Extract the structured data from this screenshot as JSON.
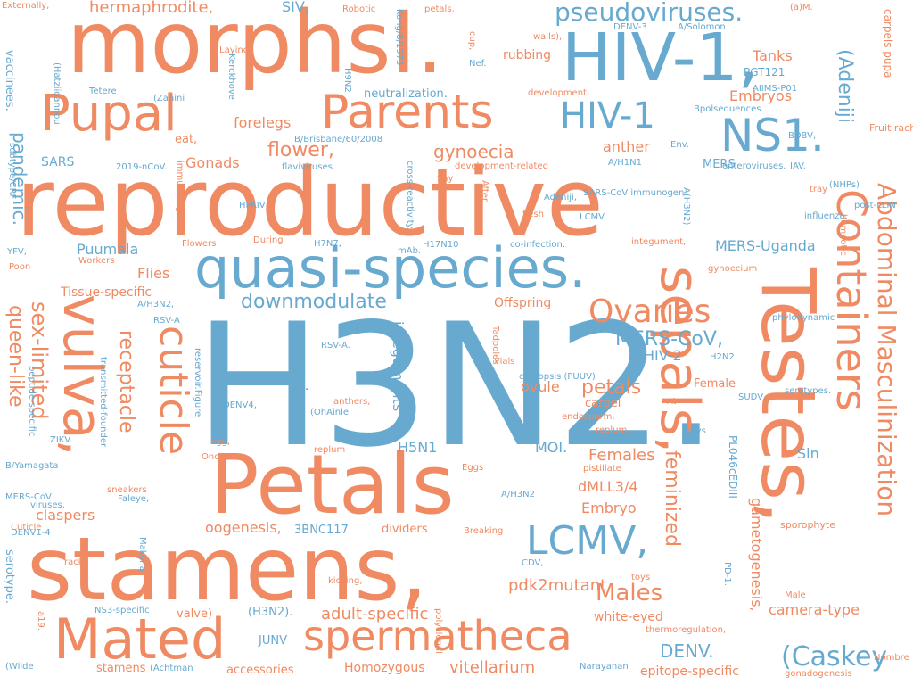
{
  "palette": {
    "orange": "#ef8a62",
    "blue": "#67a9cf",
    "background": "#ffffff"
  },
  "words": [
    {
      "text": "H3N2.",
      "color": "blue",
      "vertical": false
    },
    {
      "text": "reproductive",
      "color": "orange",
      "vertical": false
    },
    {
      "text": "stamens,",
      "color": "orange",
      "vertical": false
    },
    {
      "text": "morphsI.",
      "color": "orange",
      "vertical": false
    },
    {
      "text": "Testes,",
      "color": "orange",
      "vertical": true
    },
    {
      "text": "Petals",
      "color": "orange",
      "vertical": false
    },
    {
      "text": "HIV-1,",
      "color": "blue",
      "vertical": false
    },
    {
      "text": "quasi-species.",
      "color": "blue",
      "vertical": false
    },
    {
      "text": "sepals,",
      "color": "orange",
      "vertical": true
    },
    {
      "text": "vulva,",
      "color": "orange",
      "vertical": true
    },
    {
      "text": "Mated",
      "color": "orange",
      "vertical": false
    },
    {
      "text": "Pupal",
      "color": "orange",
      "vertical": false
    },
    {
      "text": "Parents",
      "color": "orange",
      "vertical": false
    },
    {
      "text": "spermatheca",
      "color": "orange",
      "vertical": false
    },
    {
      "text": "NS1.",
      "color": "blue",
      "vertical": false
    },
    {
      "text": "Containers",
      "color": "orange",
      "vertical": true
    },
    {
      "text": "cuticle",
      "color": "orange",
      "vertical": true
    },
    {
      "text": "LCMV,",
      "color": "blue",
      "vertical": false
    },
    {
      "text": "HIV-1",
      "color": "blue",
      "vertical": false
    },
    {
      "text": "Abdominal Masculinization",
      "color": "orange",
      "vertical": true
    },
    {
      "text": "Ovaries",
      "color": "orange",
      "vertical": false
    },
    {
      "text": "(Caskey",
      "color": "blue",
      "vertical": false
    },
    {
      "text": "(Adeniji",
      "color": "blue",
      "vertical": true
    },
    {
      "text": "sex-limited",
      "color": "orange",
      "vertical": true
    },
    {
      "text": "pseudoviruses.",
      "color": "blue",
      "vertical": false
    },
    {
      "text": "receptacle",
      "color": "orange",
      "vertical": true
    },
    {
      "text": "queen-like",
      "color": "orange",
      "vertical": true
    },
    {
      "text": "Males",
      "color": "orange",
      "vertical": false
    },
    {
      "text": "downmodulate",
      "color": "blue",
      "vertical": false
    },
    {
      "text": "feminized",
      "color": "orange",
      "vertical": true
    },
    {
      "text": "MERS-CoV,",
      "color": "blue",
      "vertical": false
    },
    {
      "text": "petals",
      "color": "orange",
      "vertical": false
    },
    {
      "text": "flower,",
      "color": "orange",
      "vertical": false
    },
    {
      "text": "gynoecia",
      "color": "orange",
      "vertical": false
    },
    {
      "text": "pandemic.",
      "color": "blue",
      "vertical": true
    },
    {
      "text": "DENV.",
      "color": "blue",
      "vertical": false
    },
    {
      "text": "adult-specific",
      "color": "orange",
      "vertical": false
    },
    {
      "text": "vitellarium",
      "color": "orange",
      "vertical": false
    },
    {
      "text": "hermaphrodite,",
      "color": "orange",
      "vertical": false
    },
    {
      "text": "pdk2mutant",
      "color": "orange",
      "vertical": false
    },
    {
      "text": "gametogenesis,",
      "color": "orange",
      "vertical": true
    },
    {
      "text": "coronavirus.",
      "color": "blue",
      "vertical": true
    },
    {
      "text": "integuments",
      "color": "blue",
      "vertical": true
    },
    {
      "text": "MERS-Uganda",
      "color": "blue",
      "vertical": false
    },
    {
      "text": "Embryo",
      "color": "orange",
      "vertical": false
    },
    {
      "text": "dMLL3/4",
      "color": "orange",
      "vertical": false
    },
    {
      "text": "Females",
      "color": "orange",
      "vertical": false
    },
    {
      "text": "oogenesis,",
      "color": "orange",
      "vertical": false
    },
    {
      "text": "claspers",
      "color": "orange",
      "vertical": false
    },
    {
      "text": "ovule",
      "color": "orange",
      "vertical": false
    },
    {
      "text": "HIV-2",
      "color": "blue",
      "vertical": false
    },
    {
      "text": "H5N1",
      "color": "blue",
      "vertical": false
    },
    {
      "text": "MOI.",
      "color": "blue",
      "vertical": false
    },
    {
      "text": "epitope-specific",
      "color": "orange",
      "vertical": false
    },
    {
      "text": "camera-type",
      "color": "orange",
      "vertical": false
    },
    {
      "text": "Embryos",
      "color": "orange",
      "vertical": false
    },
    {
      "text": "Tanks",
      "color": "orange",
      "vertical": false
    },
    {
      "text": "anther",
      "color": "orange",
      "vertical": false
    },
    {
      "text": "forelegs",
      "color": "orange",
      "vertical": false
    },
    {
      "text": "Gonads",
      "color": "orange",
      "vertical": false
    },
    {
      "text": "Offspring",
      "color": "orange",
      "vertical": false
    },
    {
      "text": "Flies",
      "color": "orange",
      "vertical": false
    },
    {
      "text": "Puumala",
      "color": "blue",
      "vertical": false
    },
    {
      "text": "Tissue-specific",
      "color": "orange",
      "vertical": false
    },
    {
      "text": "SARS",
      "color": "blue",
      "vertical": false
    },
    {
      "text": "SIV,",
      "color": "blue",
      "vertical": false
    },
    {
      "text": "rubbing",
      "color": "orange",
      "vertical": false
    },
    {
      "text": "neutralization.",
      "color": "blue",
      "vertical": false
    },
    {
      "text": "Sin",
      "color": "blue",
      "vertical": false
    },
    {
      "text": "white-eyed",
      "color": "orange",
      "vertical": false
    },
    {
      "text": "Homozygous",
      "color": "orange",
      "vertical": false
    },
    {
      "text": "accessories",
      "color": "orange",
      "vertical": false
    },
    {
      "text": "stamens",
      "color": "orange",
      "vertical": false
    },
    {
      "text": "JUNV",
      "color": "blue",
      "vertical": false
    },
    {
      "text": "(H3N2).",
      "color": "blue",
      "vertical": false
    },
    {
      "text": "valve)",
      "color": "orange",
      "vertical": false
    },
    {
      "text": "3BNC117",
      "color": "blue",
      "vertical": false
    },
    {
      "text": "dividers",
      "color": "orange",
      "vertical": false
    },
    {
      "text": "carpel",
      "color": "orange",
      "vertical": false
    },
    {
      "text": "Female",
      "color": "orange",
      "vertical": false
    },
    {
      "text": "serotype.",
      "color": "blue",
      "vertical": true
    },
    {
      "text": "vaccinees.",
      "color": "blue",
      "vertical": true
    },
    {
      "text": "PGT121",
      "color": "blue",
      "vertical": false
    },
    {
      "text": "eat,",
      "color": "orange",
      "vertical": false
    },
    {
      "text": "MERS",
      "color": "blue",
      "vertical": false
    },
    {
      "text": "PL046cEDIII",
      "color": "blue",
      "vertical": true
    },
    {
      "text": "Fruit rachis,",
      "color": "orange",
      "vertical": false
    },
    {
      "text": "carpels pupa",
      "color": "orange",
      "vertical": true
    },
    {
      "text": "sporophyte",
      "color": "orange",
      "vertical": false
    },
    {
      "text": "gonadogenesis",
      "color": "orange",
      "vertical": false
    },
    {
      "text": "Nombre",
      "color": "orange",
      "vertical": false
    },
    {
      "text": "Narayanan",
      "color": "blue",
      "vertical": false
    },
    {
      "text": "thermoregulation,",
      "color": "orange",
      "vertical": false
    },
    {
      "text": "toys",
      "color": "orange",
      "vertical": false
    },
    {
      "text": "polyclonal",
      "color": "orange",
      "vertical": true
    },
    {
      "text": "kicking,",
      "color": "orange",
      "vertical": false
    },
    {
      "text": "Breaking",
      "color": "orange",
      "vertical": false
    },
    {
      "text": "Eggs",
      "color": "orange",
      "vertical": false
    },
    {
      "text": "Once",
      "color": "orange",
      "vertical": false
    },
    {
      "text": "replum",
      "color": "orange",
      "vertical": false
    },
    {
      "text": "Faleye,",
      "color": "blue",
      "vertical": false
    },
    {
      "text": "sneakers",
      "color": "orange",
      "vertical": false
    },
    {
      "text": "DENV1-4",
      "color": "blue",
      "vertical": false
    },
    {
      "text": "Cuticle",
      "color": "orange",
      "vertical": false
    },
    {
      "text": "racks",
      "color": "orange",
      "vertical": false
    },
    {
      "text": "Makona",
      "color": "blue",
      "vertical": true
    },
    {
      "text": "NS3-specific",
      "color": "blue",
      "vertical": false
    },
    {
      "text": "a19.",
      "color": "orange",
      "vertical": true
    },
    {
      "text": "(Wilde",
      "color": "blue",
      "vertical": false
    },
    {
      "text": "(Achtman",
      "color": "blue",
      "vertical": false
    },
    {
      "text": "MERS-CoV",
      "color": "blue",
      "vertical": false
    },
    {
      "text": "viruses.",
      "color": "blue",
      "vertical": false
    },
    {
      "text": "B/Yamagata",
      "color": "blue",
      "vertical": false
    },
    {
      "text": "ZIKV.",
      "color": "blue",
      "vertical": false
    },
    {
      "text": "peptide-specific",
      "color": "blue",
      "vertical": true
    },
    {
      "text": "transmitted-founder",
      "color": "blue",
      "vertical": true
    },
    {
      "text": "RSV-A",
      "color": "blue",
      "vertical": false
    },
    {
      "text": "RSV-A.",
      "color": "blue",
      "vertical": false
    },
    {
      "text": "A/H3N2,",
      "color": "blue",
      "vertical": false
    },
    {
      "text": "DENV4,",
      "color": "blue",
      "vertical": false
    },
    {
      "text": "Vials",
      "color": "orange",
      "vertical": false
    },
    {
      "text": "egg,",
      "color": "orange",
      "vertical": false
    },
    {
      "text": "anthers,",
      "color": "orange",
      "vertical": false
    },
    {
      "text": "(OhAinle",
      "color": "blue",
      "vertical": false
    },
    {
      "text": "reservoir.Figure",
      "color": "blue",
      "vertical": true
    },
    {
      "text": "caryopsis (PUUV)",
      "color": "blue",
      "vertical": false
    },
    {
      "text": "Tadpoles",
      "color": "orange",
      "vertical": true
    },
    {
      "text": "endosperm,",
      "color": "orange",
      "vertical": false
    },
    {
      "text": "replum,",
      "color": "orange",
      "vertical": false
    },
    {
      "text": "pistillate",
      "color": "orange",
      "vertical": false
    },
    {
      "text": "A/H3N2",
      "color": "blue",
      "vertical": false
    },
    {
      "text": "At",
      "color": "orange",
      "vertical": false
    },
    {
      "text": "Envs",
      "color": "blue",
      "vertical": false
    },
    {
      "text": "H2N2",
      "color": "blue",
      "vertical": false
    },
    {
      "text": "SUDV,",
      "color": "blue",
      "vertical": false
    },
    {
      "text": "serotypes.",
      "color": "blue",
      "vertical": false
    },
    {
      "text": "phylodynamic",
      "color": "blue",
      "vertical": false
    },
    {
      "text": "(NHPs)",
      "color": "blue",
      "vertical": false
    },
    {
      "text": "post-LLIN",
      "color": "blue",
      "vertical": false
    },
    {
      "text": "influenza.",
      "color": "blue",
      "vertical": false
    },
    {
      "text": "homeotic",
      "color": "orange",
      "vertical": true
    },
    {
      "text": "tray",
      "color": "orange",
      "vertical": false
    },
    {
      "text": "gynoecium",
      "color": "orange",
      "vertical": false
    },
    {
      "text": "Male",
      "color": "orange",
      "vertical": false
    },
    {
      "text": "PD-1.",
      "color": "blue",
      "vertical": true
    },
    {
      "text": "CDV,",
      "color": "blue",
      "vertical": false
    },
    {
      "text": "enteroviruses.",
      "color": "blue",
      "vertical": false
    },
    {
      "text": "IAV.",
      "color": "blue",
      "vertical": false
    },
    {
      "text": "A(H3N2)",
      "color": "blue",
      "vertical": true
    },
    {
      "text": "A/H1N1",
      "color": "blue",
      "vertical": false
    },
    {
      "text": "Env.",
      "color": "blue",
      "vertical": false
    },
    {
      "text": "BDBV,",
      "color": "blue",
      "vertical": false
    },
    {
      "text": "Bpolsequences",
      "color": "blue",
      "vertical": false
    },
    {
      "text": "AIIMS-P01",
      "color": "blue",
      "vertical": false
    },
    {
      "text": "A/Solomon",
      "color": "blue",
      "vertical": false
    },
    {
      "text": "(a)M.",
      "color": "orange",
      "vertical": false
    },
    {
      "text": "DENV-3",
      "color": "blue",
      "vertical": false
    },
    {
      "text": "walls),",
      "color": "orange",
      "vertical": false
    },
    {
      "text": "development",
      "color": "orange",
      "vertical": false
    },
    {
      "text": "cup,",
      "color": "orange",
      "vertical": true
    },
    {
      "text": "petals,",
      "color": "orange",
      "vertical": false
    },
    {
      "text": "Robotic",
      "color": "orange",
      "vertical": false
    },
    {
      "text": "Kong/8/1973",
      "color": "blue",
      "vertical": true
    },
    {
      "text": "H9N2",
      "color": "blue",
      "vertical": true
    },
    {
      "text": "Nef.",
      "color": "blue",
      "vertical": false
    },
    {
      "text": "Externally,",
      "color": "orange",
      "vertical": false
    },
    {
      "text": "(Hatziioannou",
      "color": "blue",
      "vertical": true
    },
    {
      "text": "(Zanini",
      "color": "blue",
      "vertical": false
    },
    {
      "text": "Tetere",
      "color": "blue",
      "vertical": false
    },
    {
      "text": "Laying",
      "color": "orange",
      "vertical": false
    },
    {
      "text": "Kerckhove",
      "color": "blue",
      "vertical": true
    },
    {
      "text": "B/Brisbane/60/2008",
      "color": "blue",
      "vertical": false
    },
    {
      "text": "2019-nCoV.",
      "color": "blue",
      "vertical": false
    },
    {
      "text": "flaviviruses.",
      "color": "blue",
      "vertical": false
    },
    {
      "text": "Say",
      "color": "orange",
      "vertical": false
    },
    {
      "text": "development-related",
      "color": "orange",
      "vertical": false
    },
    {
      "text": "Adeniji,",
      "color": "blue",
      "vertical": false
    },
    {
      "text": "SARS-CoV immunogen.",
      "color": "blue",
      "vertical": false
    },
    {
      "text": "LCMV",
      "color": "blue",
      "vertical": false
    },
    {
      "text": "flesh",
      "color": "orange",
      "vertical": false
    },
    {
      "text": "immunising",
      "color": "orange",
      "vertical": true
    },
    {
      "text": "HPAIV",
      "color": "blue",
      "vertical": false
    },
    {
      "text": "cross-reactivity.",
      "color": "blue",
      "vertical": true
    },
    {
      "text": "After",
      "color": "orange",
      "vertical": true
    },
    {
      "text": "subtype/CRF",
      "color": "blue",
      "vertical": true
    },
    {
      "text": "YFV,",
      "color": "blue",
      "vertical": false
    },
    {
      "text": "Poon",
      "color": "orange",
      "vertical": false
    },
    {
      "text": "Workers",
      "color": "orange",
      "vertical": false
    },
    {
      "text": "Flowers",
      "color": "orange",
      "vertical": false
    },
    {
      "text": "During",
      "color": "orange",
      "vertical": false
    },
    {
      "text": "H7N7,",
      "color": "blue",
      "vertical": false
    },
    {
      "text": "mAb.",
      "color": "blue",
      "vertical": false
    },
    {
      "text": "H17N10",
      "color": "blue",
      "vertical": false
    },
    {
      "text": "co-infection.",
      "color": "blue",
      "vertical": false
    },
    {
      "text": "integument,",
      "color": "orange",
      "vertical": false
    }
  ]
}
